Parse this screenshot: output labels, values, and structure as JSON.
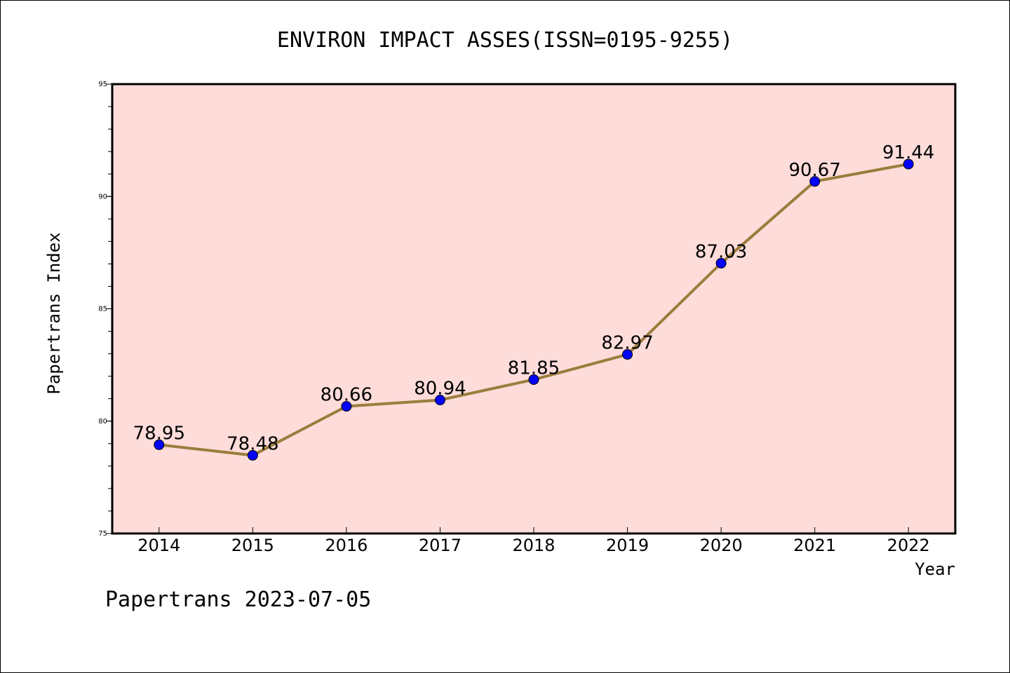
{
  "chart_data": {
    "type": "line",
    "title": "ENVIRON IMPACT ASSES(ISSN=0195-9255)",
    "xlabel": "Year",
    "ylabel": "Papertrans Index",
    "categories": [
      "2014",
      "2015",
      "2016",
      "2017",
      "2018",
      "2019",
      "2020",
      "2021",
      "2022"
    ],
    "values": [
      78.95,
      78.48,
      80.66,
      80.94,
      81.85,
      82.97,
      87.03,
      90.67,
      91.44
    ],
    "data_labels": [
      "78.95",
      "78.48",
      "80.66",
      "80.94",
      "81.85",
      "82.97",
      "87.03",
      "90.67",
      "91.44"
    ],
    "ylim": [
      75,
      95
    ],
    "yticks": [
      "75",
      "80",
      "85",
      "90",
      "95"
    ],
    "y_minor_step": 1,
    "grid": false,
    "legend": "none",
    "footer": "Papertrans 2023-07-05",
    "colors": {
      "plot_background": "#fddcda",
      "line": "#9a7d3c",
      "marker": "#0000ff",
      "axes": "#000000"
    }
  }
}
